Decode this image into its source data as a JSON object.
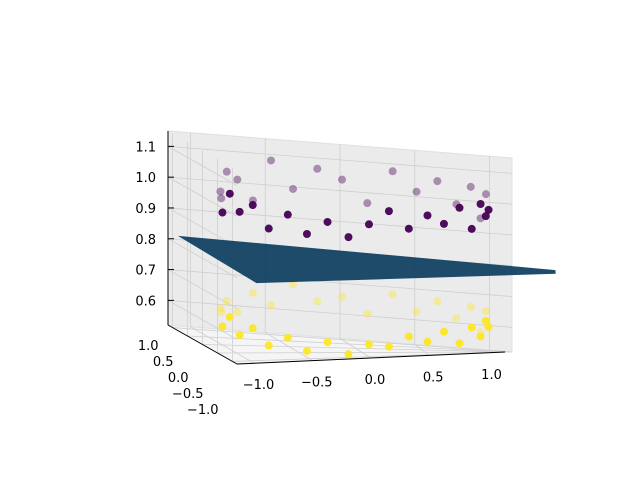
{
  "chart_data": {
    "type": "scatter3d",
    "title": "",
    "xlabel": "",
    "ylabel": "",
    "zlabel": "",
    "xlim": [
      -1.15,
      1.15
    ],
    "ylim": [
      -1.15,
      1.15
    ],
    "zlim": [
      0.52,
      1.15
    ],
    "x_ticks": [
      "−1.0",
      "−0.5",
      "0.0",
      "0.5",
      "1.0"
    ],
    "y_ticks": [
      "1.0",
      "0.5",
      "0.0",
      "−0.5",
      "−1.0"
    ],
    "z_ticks": [
      "0.6",
      "0.7",
      "0.8",
      "0.9",
      "1.0",
      "1.1"
    ],
    "grid": true,
    "surface": {
      "type": "plane",
      "z": 0.79,
      "color": "#0d3d5e"
    },
    "series": [
      {
        "color": "#440154",
        "points": [
          [
            1.0,
            0.0,
            0.98
          ],
          [
            0.98,
            0.17,
            1.03
          ],
          [
            0.94,
            0.34,
            0.95
          ],
          [
            0.87,
            0.5,
            1.05
          ],
          [
            0.77,
            0.64,
            0.99
          ],
          [
            0.64,
            0.77,
            1.06
          ],
          [
            0.5,
            0.87,
            1.02
          ],
          [
            0.34,
            0.94,
            1.08
          ],
          [
            0.17,
            0.98,
            0.97
          ],
          [
            0.0,
            1.0,
            1.04
          ],
          [
            -0.17,
            0.98,
            1.07
          ],
          [
            -0.34,
            0.94,
            1.0
          ],
          [
            -0.5,
            0.87,
            1.09
          ],
          [
            -0.64,
            0.77,
            0.96
          ],
          [
            -0.77,
            0.64,
            1.03
          ],
          [
            -0.87,
            0.5,
            1.06
          ],
          [
            -0.94,
            0.34,
            0.98
          ],
          [
            -0.98,
            0.17,
            1.01
          ],
          [
            -1.0,
            0.0,
            0.95
          ],
          [
            -0.98,
            -0.17,
            1.02
          ],
          [
            -0.94,
            -0.34,
            0.97
          ],
          [
            -0.87,
            -0.5,
            1.0
          ],
          [
            -0.77,
            -0.64,
            0.93
          ],
          [
            -0.64,
            -0.77,
            0.98
          ],
          [
            -0.5,
            -0.87,
            0.92
          ],
          [
            -0.34,
            -0.94,
            0.96
          ],
          [
            -0.17,
            -0.98,
            0.91
          ],
          [
            0.0,
            -1.0,
            0.95
          ],
          [
            0.17,
            -0.98,
            0.99
          ],
          [
            0.34,
            -0.94,
            0.93
          ],
          [
            0.5,
            -0.87,
            0.97
          ],
          [
            0.64,
            -0.77,
            0.94
          ],
          [
            0.77,
            -0.64,
            0.99
          ],
          [
            0.87,
            -0.5,
            0.92
          ],
          [
            0.94,
            -0.34,
            1.0
          ],
          [
            0.98,
            -0.17,
            0.96
          ]
        ]
      },
      {
        "color": "#fde725",
        "points": [
          [
            1.0,
            0.0,
            0.6
          ],
          [
            0.98,
            0.17,
            0.65
          ],
          [
            0.94,
            0.34,
            0.58
          ],
          [
            0.87,
            0.5,
            0.66
          ],
          [
            0.77,
            0.64,
            0.62
          ],
          [
            0.64,
            0.77,
            0.67
          ],
          [
            0.5,
            0.87,
            0.63
          ],
          [
            0.34,
            0.94,
            0.68
          ],
          [
            0.17,
            0.98,
            0.61
          ],
          [
            0.0,
            1.0,
            0.66
          ],
          [
            -0.17,
            0.98,
            0.64
          ],
          [
            -0.34,
            0.94,
            0.69
          ],
          [
            -0.5,
            0.87,
            0.62
          ],
          [
            -0.64,
            0.77,
            0.66
          ],
          [
            -0.77,
            0.64,
            0.6
          ],
          [
            -0.87,
            0.5,
            0.64
          ],
          [
            -0.94,
            0.34,
            0.61
          ],
          [
            -0.98,
            0.17,
            0.63
          ],
          [
            -1.0,
            0.0,
            0.58
          ],
          [
            -0.98,
            -0.17,
            0.62
          ],
          [
            -0.94,
            -0.34,
            0.57
          ],
          [
            -0.87,
            -0.5,
            0.6
          ],
          [
            -0.77,
            -0.64,
            0.55
          ],
          [
            -0.64,
            -0.77,
            0.58
          ],
          [
            -0.5,
            -0.87,
            0.54
          ],
          [
            -0.34,
            -0.94,
            0.57
          ],
          [
            -0.17,
            -0.98,
            0.53
          ],
          [
            0.0,
            -1.0,
            0.56
          ],
          [
            0.17,
            -0.98,
            0.55
          ],
          [
            0.34,
            -0.94,
            0.58
          ],
          [
            0.5,
            -0.87,
            0.56
          ],
          [
            0.64,
            -0.77,
            0.59
          ],
          [
            0.77,
            -0.64,
            0.55
          ],
          [
            0.87,
            -0.5,
            0.6
          ],
          [
            0.94,
            -0.34,
            0.57
          ],
          [
            0.98,
            -0.17,
            0.62
          ]
        ]
      }
    ]
  }
}
